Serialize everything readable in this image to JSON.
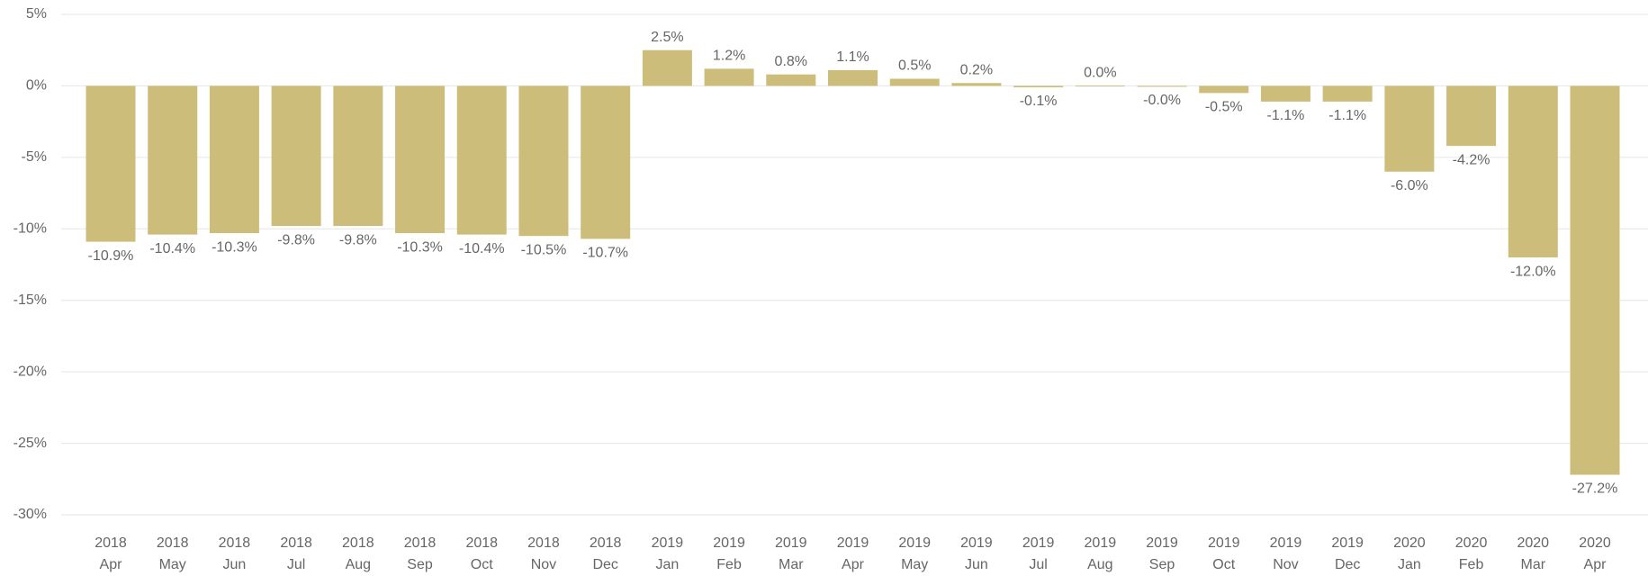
{
  "chart_data": {
    "type": "bar",
    "categories": [
      [
        "2018",
        "Apr"
      ],
      [
        "2018",
        "May"
      ],
      [
        "2018",
        "Jun"
      ],
      [
        "2018",
        "Jul"
      ],
      [
        "2018",
        "Aug"
      ],
      [
        "2018",
        "Sep"
      ],
      [
        "2018",
        "Oct"
      ],
      [
        "2018",
        "Nov"
      ],
      [
        "2018",
        "Dec"
      ],
      [
        "2019",
        "Jan"
      ],
      [
        "2019",
        "Feb"
      ],
      [
        "2019",
        "Mar"
      ],
      [
        "2019",
        "Apr"
      ],
      [
        "2019",
        "May"
      ],
      [
        "2019",
        "Jun"
      ],
      [
        "2019",
        "Jul"
      ],
      [
        "2019",
        "Aug"
      ],
      [
        "2019",
        "Sep"
      ],
      [
        "2019",
        "Oct"
      ],
      [
        "2019",
        "Nov"
      ],
      [
        "2019",
        "Dec"
      ],
      [
        "2020",
        "Jan"
      ],
      [
        "2020",
        "Feb"
      ],
      [
        "2020",
        "Mar"
      ],
      [
        "2020",
        "Apr"
      ]
    ],
    "values": [
      -10.9,
      -10.4,
      -10.3,
      -9.8,
      -9.8,
      -10.3,
      -10.4,
      -10.5,
      -10.7,
      2.5,
      1.2,
      0.8,
      1.1,
      0.5,
      0.2,
      -0.1,
      0.02,
      -0.02,
      -0.5,
      -1.1,
      -1.1,
      -6.0,
      -4.2,
      -12.0,
      -27.2
    ],
    "value_labels": [
      "-10.9%",
      "-10.4%",
      "-10.3%",
      "-9.8%",
      "-9.8%",
      "-10.3%",
      "-10.4%",
      "-10.5%",
      "-10.7%",
      "2.5%",
      "1.2%",
      "0.8%",
      "1.1%",
      "0.5%",
      "0.2%",
      "-0.1%",
      "0.0%",
      "-0.0%",
      "-0.5%",
      "-1.1%",
      "-1.1%",
      "-6.0%",
      "-4.2%",
      "-12.0%",
      "-27.2%"
    ],
    "color": "#cdbd7a",
    "ylim": [
      -30,
      5
    ],
    "yticks": [
      {
        "value": 5,
        "label": "5%"
      },
      {
        "value": 0,
        "label": "0%"
      },
      {
        "value": -5,
        "label": "-5%"
      },
      {
        "value": -10,
        "label": "-10%"
      },
      {
        "value": -15,
        "label": "-15%"
      },
      {
        "value": -20,
        "label": "-20%"
      },
      {
        "value": -25,
        "label": "-25%"
      },
      {
        "value": -30,
        "label": "-30%"
      }
    ],
    "grid": true
  }
}
